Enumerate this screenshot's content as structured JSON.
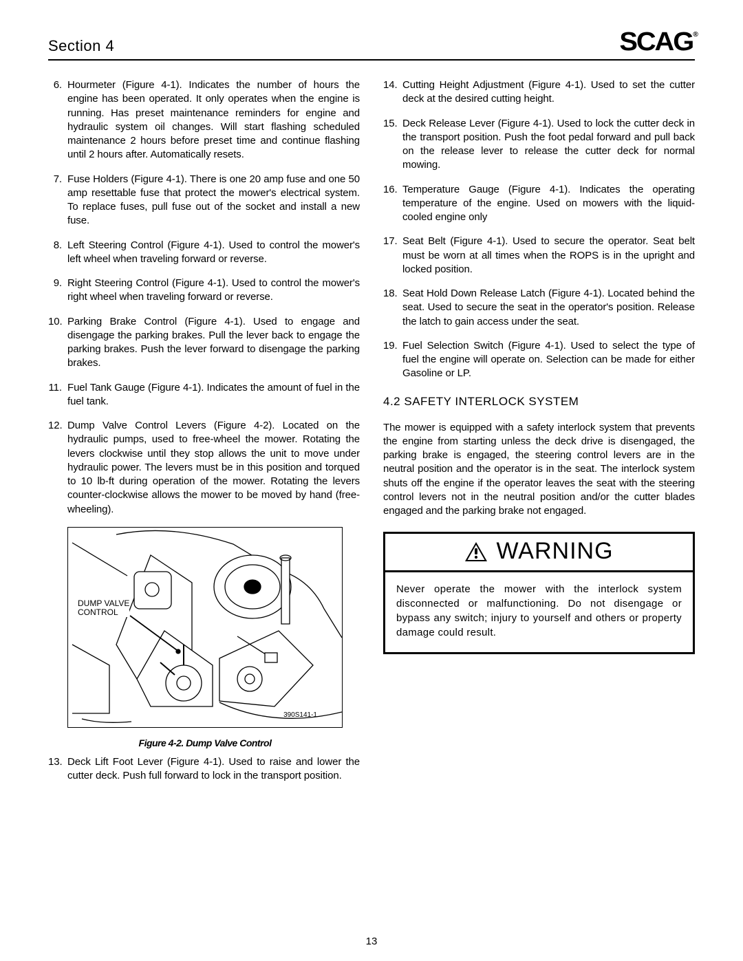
{
  "header": {
    "section": "Section 4",
    "logo_text": "SCAG"
  },
  "left_items": [
    {
      "n": "6.",
      "text": "Hourmeter (Figure 4-1).  Indicates the number of hours the engine has been operated. It only operates when the engine is running. Has preset maintenance reminders for engine and hydraulic system oil changes. Will start flashing scheduled maintenance 2 hours before preset time and continue flashing until 2 hours after. Automatically resets."
    },
    {
      "n": "7.",
      "text": "Fuse Holders (Figure 4-1).  There is one 20 amp fuse and one 50 amp resettable fuse that protect the mower's electrical system. To replace fuses, pull fuse out of the socket and install a new fuse."
    },
    {
      "n": "8.",
      "text": "Left Steering Control (Figure 4-1).  Used to control the mower's left wheel when traveling forward or reverse."
    },
    {
      "n": "9.",
      "text": "Right Steering Control (Figure 4-1).  Used to control the mower's right wheel when traveling forward or reverse."
    },
    {
      "n": "10.",
      "text": "Parking Brake Control (Figure 4-1).  Used to engage and disengage the parking brakes. Pull the lever back to engage the parking brakes. Push the lever forward to disengage the parking brakes."
    },
    {
      "n": "11.",
      "text": "Fuel Tank Gauge (Figure 4-1).  Indicates the amount of fuel in the fuel tank."
    },
    {
      "n": "12.",
      "text": "Dump Valve Control Levers (Figure 4-2).  Located on the hydraulic pumps, used to  free-wheel  the mower. Rotating the levers clockwise until they stop allows the unit to move under hydraulic power. The levers must be in this position and torqued to 10 lb-ft during operation of the mower. Rotating the levers counter-clockwise allows the mower to be moved by hand (free-wheeling)."
    }
  ],
  "left_after_figure": [
    {
      "n": "13.",
      "text": "Deck Lift Foot Lever (Figure 4-1).  Used to raise and lower the cutter deck. Push full forward to lock in the transport position."
    }
  ],
  "right_items": [
    {
      "n": "14.",
      "text": "Cutting Height Adjustment (Figure 4-1).  Used to set the cutter deck at the desired cutting height."
    },
    {
      "n": "15.",
      "text": "Deck Release Lever (Figure 4-1).  Used to lock the cutter deck in the transport position. Push the foot pedal forward and pull back on the release lever to release the cutter deck for normal mowing."
    },
    {
      "n": "16.",
      "text": "Temperature Gauge (Figure 4-1).  Indicates the operating temperature of the engine. Used on mowers with the liquid-cooled engine only"
    },
    {
      "n": "17.",
      "text": "Seat Belt (Figure 4-1). Used to secure the operator. Seat belt must be worn at all times when the ROPS is in the upright and locked position."
    },
    {
      "n": "18.",
      "text": "Seat Hold Down Release Latch (Figure 4-1). Located behind the seat. Used to secure the seat in the operator's position. Release the latch to gain access under the seat."
    },
    {
      "n": "19.",
      "text": "Fuel Selection Switch (Figure 4-1). Used to select the type of fuel the engine will operate on. Selection can be made for either Gasoline or LP."
    }
  ],
  "subheading": "4.2 SAFETY INTERLOCK SYSTEM",
  "interlock_para": "The mower is equipped with a safety interlock system that prevents the engine from starting unless the deck drive is disengaged, the parking brake is engaged, the steering control levers are in the neutral position and the operator is in the seat. The interlock system shuts off the engine if the operator leaves the seat with the steering control levers not in the neutral position and/or the cutter blades engaged and the parking brake not engaged.",
  "warning": {
    "title": "WARNING",
    "body": "Never operate the mower with the interlock system disconnected or malfunctioning. Do not disengage or bypass any switch; injury to yourself and others or property damage could result."
  },
  "figure": {
    "label_line1": "DUMP VALVE",
    "label_line2": "CONTROL",
    "partno": "390S141-1",
    "caption": "Figure 4-2.  Dump Valve Control"
  },
  "page_number": "13",
  "colors": {
    "text": "#000000",
    "background": "#ffffff",
    "border": "#000000"
  }
}
